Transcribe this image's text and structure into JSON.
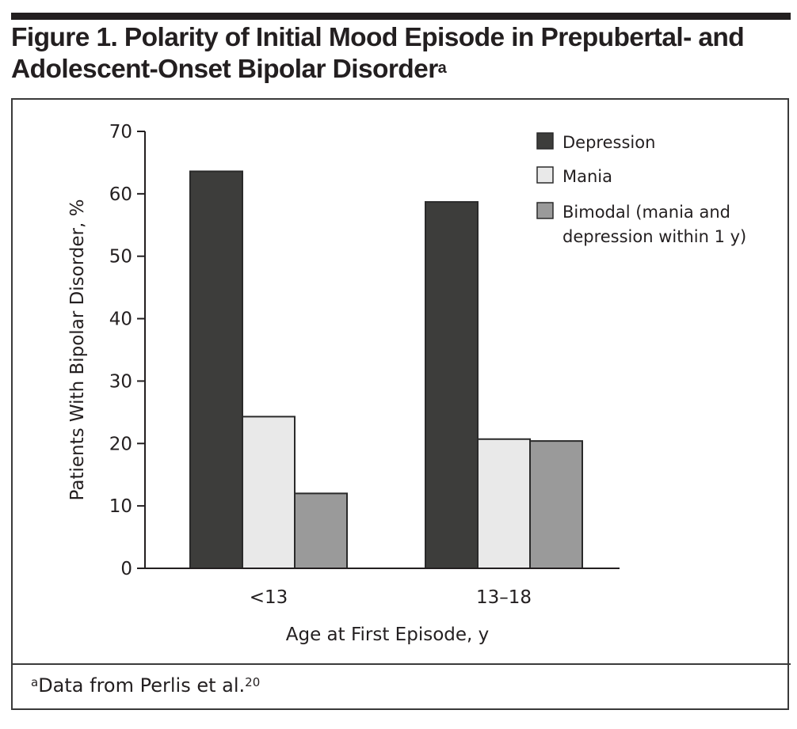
{
  "figure": {
    "title": "Figure 1. Polarity of Initial Mood Episode in Prepubertal- and Adolescent-Onset Bipolar Disorder",
    "title_superscript": "a",
    "footnote_marker": "a",
    "footnote_text": "Data from Perlis et al.",
    "footnote_ref": "20"
  },
  "chart_data": {
    "type": "bar",
    "title": "Polarity of Initial Mood Episode in Prepubertal- and Adolescent-Onset Bipolar Disorder",
    "xlabel": "Age at First Episode, y",
    "ylabel": "Patients With Bipolar Disorder, %",
    "categories": [
      "<13",
      "13–18"
    ],
    "ylim": [
      0,
      70
    ],
    "yticks": [
      0,
      10,
      20,
      30,
      40,
      50,
      60,
      70
    ],
    "grid": false,
    "legend_position": "top-right",
    "series": [
      {
        "name": "Depression",
        "color": "#3d3d3b",
        "values": [
          63.6,
          58.7
        ]
      },
      {
        "name": "Mania",
        "color": "#e9e9e9",
        "values": [
          24.3,
          20.7
        ]
      },
      {
        "name": "Bimodal (mania and depression within 1 y)",
        "legend_lines": [
          "Bimodal (mania and",
          "depression within 1 y)"
        ],
        "color": "#9a9a9a",
        "values": [
          12.0,
          20.4
        ]
      }
    ]
  }
}
